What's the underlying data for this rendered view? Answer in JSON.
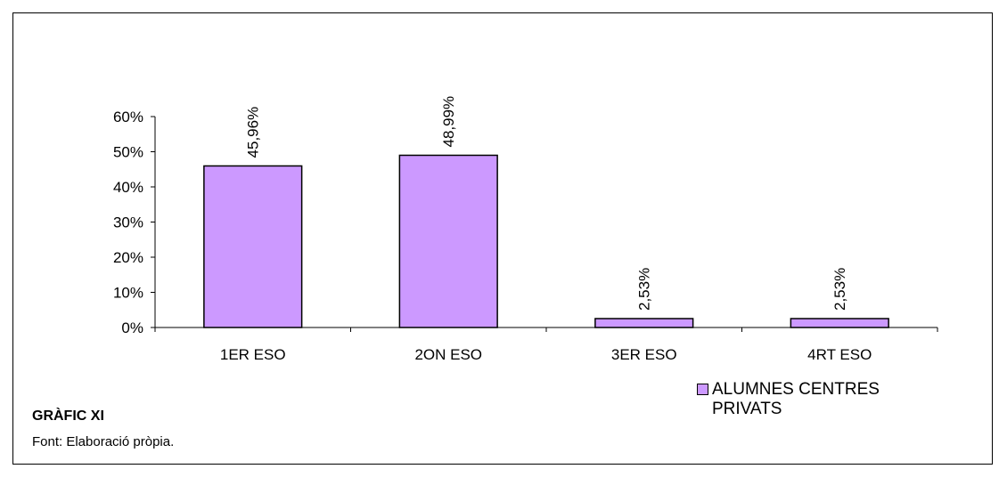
{
  "chart_data": {
    "type": "bar",
    "categories": [
      "1ER ESO",
      "2ON ESO",
      "3ER ESO",
      "4RT ESO"
    ],
    "series": [
      {
        "name": "ALUMNES CENTRES PRIVATS",
        "values": [
          45.96,
          48.99,
          2.53,
          2.53
        ],
        "color": "#cc99ff"
      }
    ],
    "data_labels": [
      "45,96%",
      "48,99%",
      "2,53%",
      "2,53%"
    ],
    "yticks": [
      "0%",
      "10%",
      "20%",
      "30%",
      "40%",
      "50%",
      "60%"
    ],
    "ylim": [
      0,
      60
    ],
    "title": "",
    "xlabel": "",
    "ylabel": "",
    "grid": false,
    "legend_position": "bottom-right"
  },
  "caption": {
    "title": "GRÀFIC XI",
    "source": "Font: Elaboració pròpia."
  },
  "colors": {
    "bar_fill": "#cc99ff",
    "bar_stroke": "#000000",
    "background": "#ffffff"
  }
}
